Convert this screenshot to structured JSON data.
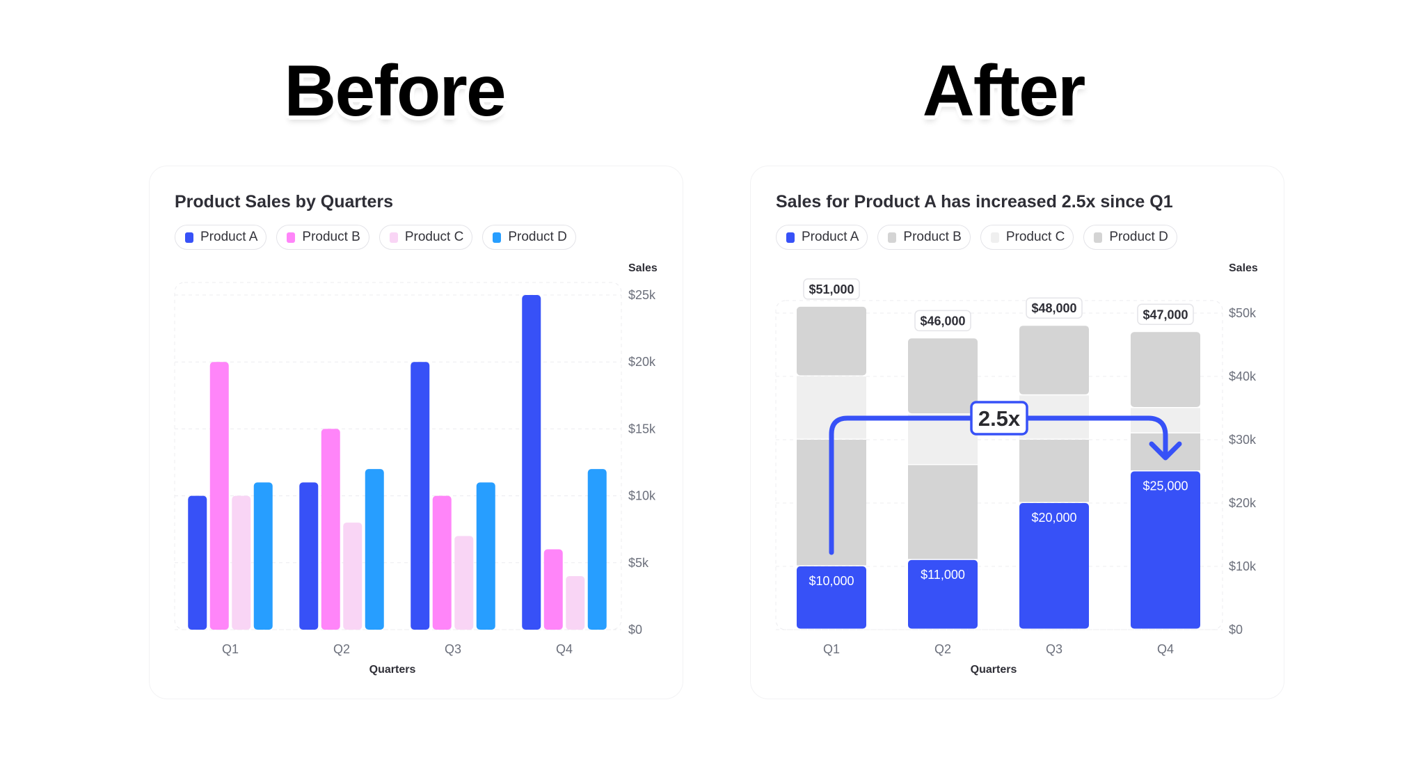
{
  "headings": {
    "before": "Before",
    "after": "After"
  },
  "colors": {
    "product_a": "#3751F7",
    "product_b": "#FF85F9",
    "product_c": "#F9D5F5",
    "product_d": "#279EFF",
    "muted_b": "#D4D4D4",
    "muted_c": "#EFEFEF",
    "muted_d": "#D4D4D4"
  },
  "chart_data": [
    {
      "type": "bar",
      "title": "Product Sales by Quarters",
      "xlabel": "Quarters",
      "ylabel": "Sales",
      "categories": [
        "Q1",
        "Q2",
        "Q3",
        "Q4"
      ],
      "ylim": [
        0,
        25000
      ],
      "yticks": [
        "$0",
        "$5k",
        "$10k",
        "$15k",
        "$20k",
        "$25k"
      ],
      "grid": true,
      "legend_position": "top-left",
      "series": [
        {
          "name": "Product A",
          "values": [
            10000,
            11000,
            20000,
            25000
          ]
        },
        {
          "name": "Product B",
          "values": [
            20000,
            15000,
            10000,
            6000
          ]
        },
        {
          "name": "Product C",
          "values": [
            10000,
            8000,
            7000,
            4000
          ]
        },
        {
          "name": "Product D",
          "values": [
            11000,
            12000,
            11000,
            12000
          ]
        }
      ]
    },
    {
      "type": "bar",
      "stacked": true,
      "title": "Sales for Product A has increased 2.5x since Q1",
      "xlabel": "Quarters",
      "ylabel": "Sales",
      "categories": [
        "Q1",
        "Q2",
        "Q3",
        "Q4"
      ],
      "ylim": [
        0,
        50000
      ],
      "yticks": [
        "$0",
        "$10k",
        "$20k",
        "$30k",
        "$40k",
        "$50k"
      ],
      "grid": true,
      "legend_position": "top-left",
      "series": [
        {
          "name": "Product A",
          "values": [
            10000,
            11000,
            20000,
            25000
          ],
          "labels": [
            "$10,000",
            "$11,000",
            "$20,000",
            "$25,000"
          ]
        },
        {
          "name": "Product B",
          "values": [
            20000,
            15000,
            10000,
            6000
          ]
        },
        {
          "name": "Product C",
          "values": [
            10000,
            8000,
            7000,
            4000
          ]
        },
        {
          "name": "Product D",
          "values": [
            11000,
            12000,
            11000,
            12000
          ]
        }
      ],
      "totals": [
        "$51,000",
        "$46,000",
        "$48,000",
        "$47,000"
      ],
      "annotation": {
        "text": "2.5x",
        "from": "Q1",
        "to": "Q4"
      }
    }
  ]
}
